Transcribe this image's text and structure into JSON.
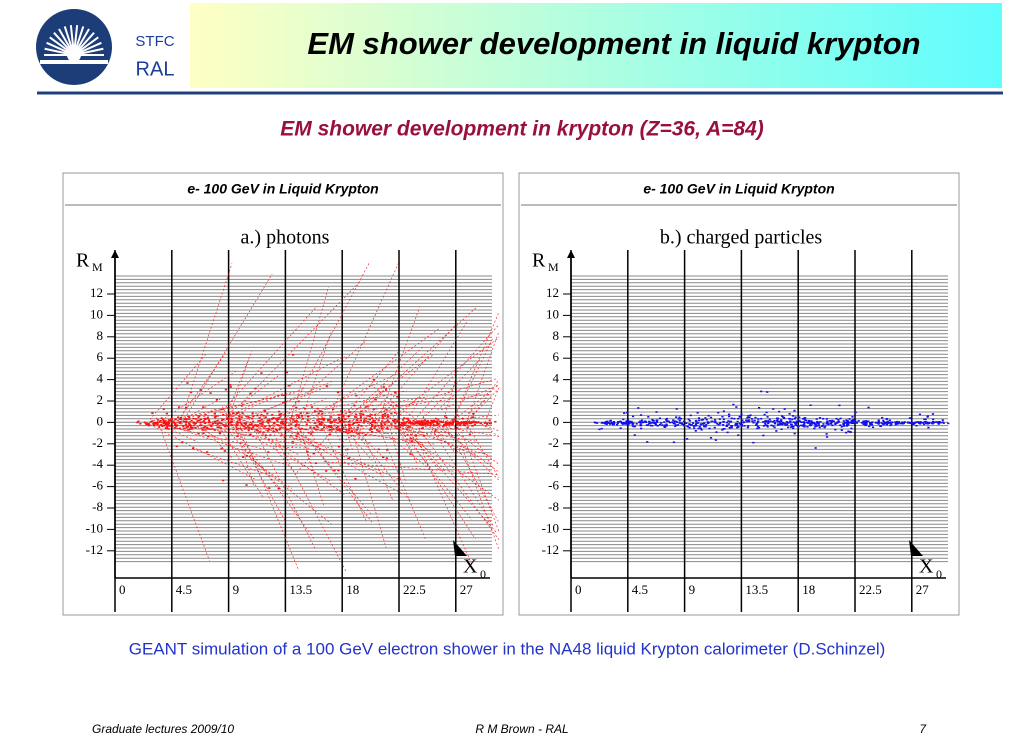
{
  "header": {
    "logo_top": "STFC",
    "logo_bottom": "RAL",
    "title": "EM shower development in liquid krypton"
  },
  "subtitle": "EM shower development in krypton (Z=36, A=84)",
  "figures": [
    {
      "header": "e- 100 GeV in Liquid Krypton",
      "label": "a.) photons",
      "y_axis": "R",
      "y_axis_sub": "M",
      "x_axis": "X",
      "x_axis_sub": "0",
      "yticks": [
        "12",
        "10",
        "8",
        "6",
        "4",
        "2",
        "0",
        "-2",
        "-4",
        "-6",
        "-8",
        "-10",
        "-12"
      ],
      "xticks": [
        "0",
        "4.5",
        "9",
        "13.5",
        "18",
        "22.5",
        "27"
      ]
    },
    {
      "header": "e- 100 GeV in Liquid Krypton",
      "label": "b.) charged particles",
      "y_axis": "R",
      "y_axis_sub": "M",
      "x_axis": "X",
      "x_axis_sub": "0",
      "yticks": [
        "12",
        "10",
        "8",
        "6",
        "4",
        "2",
        "0",
        "-2",
        "-4",
        "-6",
        "-8",
        "-10",
        "-12"
      ],
      "xticks": [
        "0",
        "4.5",
        "9",
        "13.5",
        "18",
        "22.5",
        "27"
      ]
    }
  ],
  "caption": "GEANT simulation of a 100 GeV electron shower in the NA48 liquid Krypton calorimeter (D.Schinzel)",
  "footer": {
    "left": "Graduate lectures 2009/10",
    "center": "R M Brown - RAL",
    "right": "7"
  }
}
